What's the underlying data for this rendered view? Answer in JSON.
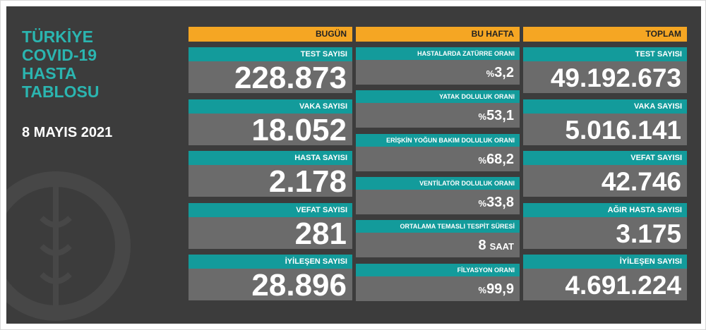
{
  "header": {
    "title_lines": [
      "TÜRKİYE",
      "COVID-19",
      "HASTA",
      "TABLOSU"
    ],
    "date": "8 MAYIS 2021"
  },
  "columns": [
    {
      "title": "BUGÜN",
      "items": [
        {
          "label": "TEST SAYISI",
          "value": "228.873"
        },
        {
          "label": "VAKA SAYISI",
          "value": "18.052"
        },
        {
          "label": "HASTA SAYISI",
          "value": "2.178"
        },
        {
          "label": "VEFAT SAYISI",
          "value": "281"
        },
        {
          "label": "İYİLEŞEN SAYISI",
          "value": "28.896"
        }
      ]
    },
    {
      "title": "BU HAFTA",
      "items": [
        {
          "label": "HASTALARDA ZATÜRRE ORANI",
          "prefix": "%",
          "value": "3,2"
        },
        {
          "label": "YATAK DOLULUK ORANI",
          "prefix": "%",
          "value": "53,1"
        },
        {
          "label": "ERİŞKİN YOĞUN BAKIM DOLULUK ORANI",
          "prefix": "%",
          "value": "68,2"
        },
        {
          "label": "VENTİLATÖR DOLULUK ORANI",
          "prefix": "%",
          "value": "33,8"
        },
        {
          "label": "ORTALAMA TEMASLI TESPİT SÜRESİ",
          "value": "8",
          "suffix": "SAAT"
        },
        {
          "label": "FİLYASYON ORANI",
          "prefix": "%",
          "value": "99,9"
        }
      ]
    },
    {
      "title": "TOPLAM",
      "items": [
        {
          "label": "TEST SAYISI",
          "value": "49.192.673"
        },
        {
          "label": "VAKA SAYISI",
          "value": "5.016.141"
        },
        {
          "label": "VEFAT SAYISI",
          "value": "42.746"
        },
        {
          "label": "AĞIR HASTA SAYISI",
          "value": "3.175"
        },
        {
          "label": "İYİLEŞEN SAYISI",
          "value": "4.691.224"
        }
      ]
    }
  ]
}
